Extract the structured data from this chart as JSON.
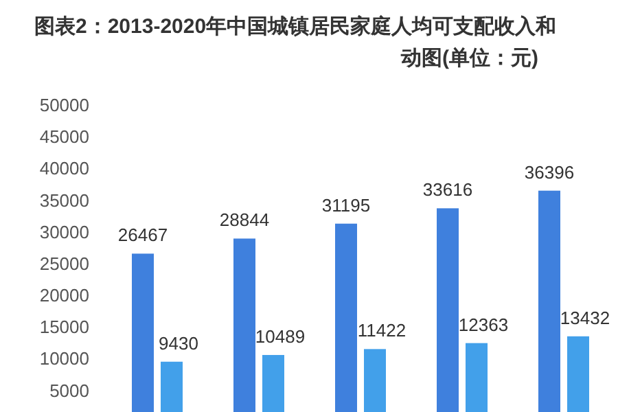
{
  "chart_data": {
    "type": "bar",
    "title": "图表2：2013-2020年中国城镇居民家庭人均可支配收入和",
    "subtitle": "动图(单位：元)",
    "categories": [
      null,
      null,
      null,
      null,
      null
    ],
    "series": [
      {
        "color": "#3f80dd",
        "values": [
          26467,
          28844,
          31195,
          33616,
          36396
        ]
      },
      {
        "color": "#42a0ea",
        "values": [
          9430,
          10489,
          11422,
          12363,
          13432
        ]
      }
    ],
    "ylim": [
      1500,
      50000
    ],
    "yticks": [
      5000,
      10000,
      15000,
      20000,
      25000,
      30000,
      35000,
      40000,
      45000,
      50000
    ],
    "data_labels": true,
    "grid": false
  }
}
